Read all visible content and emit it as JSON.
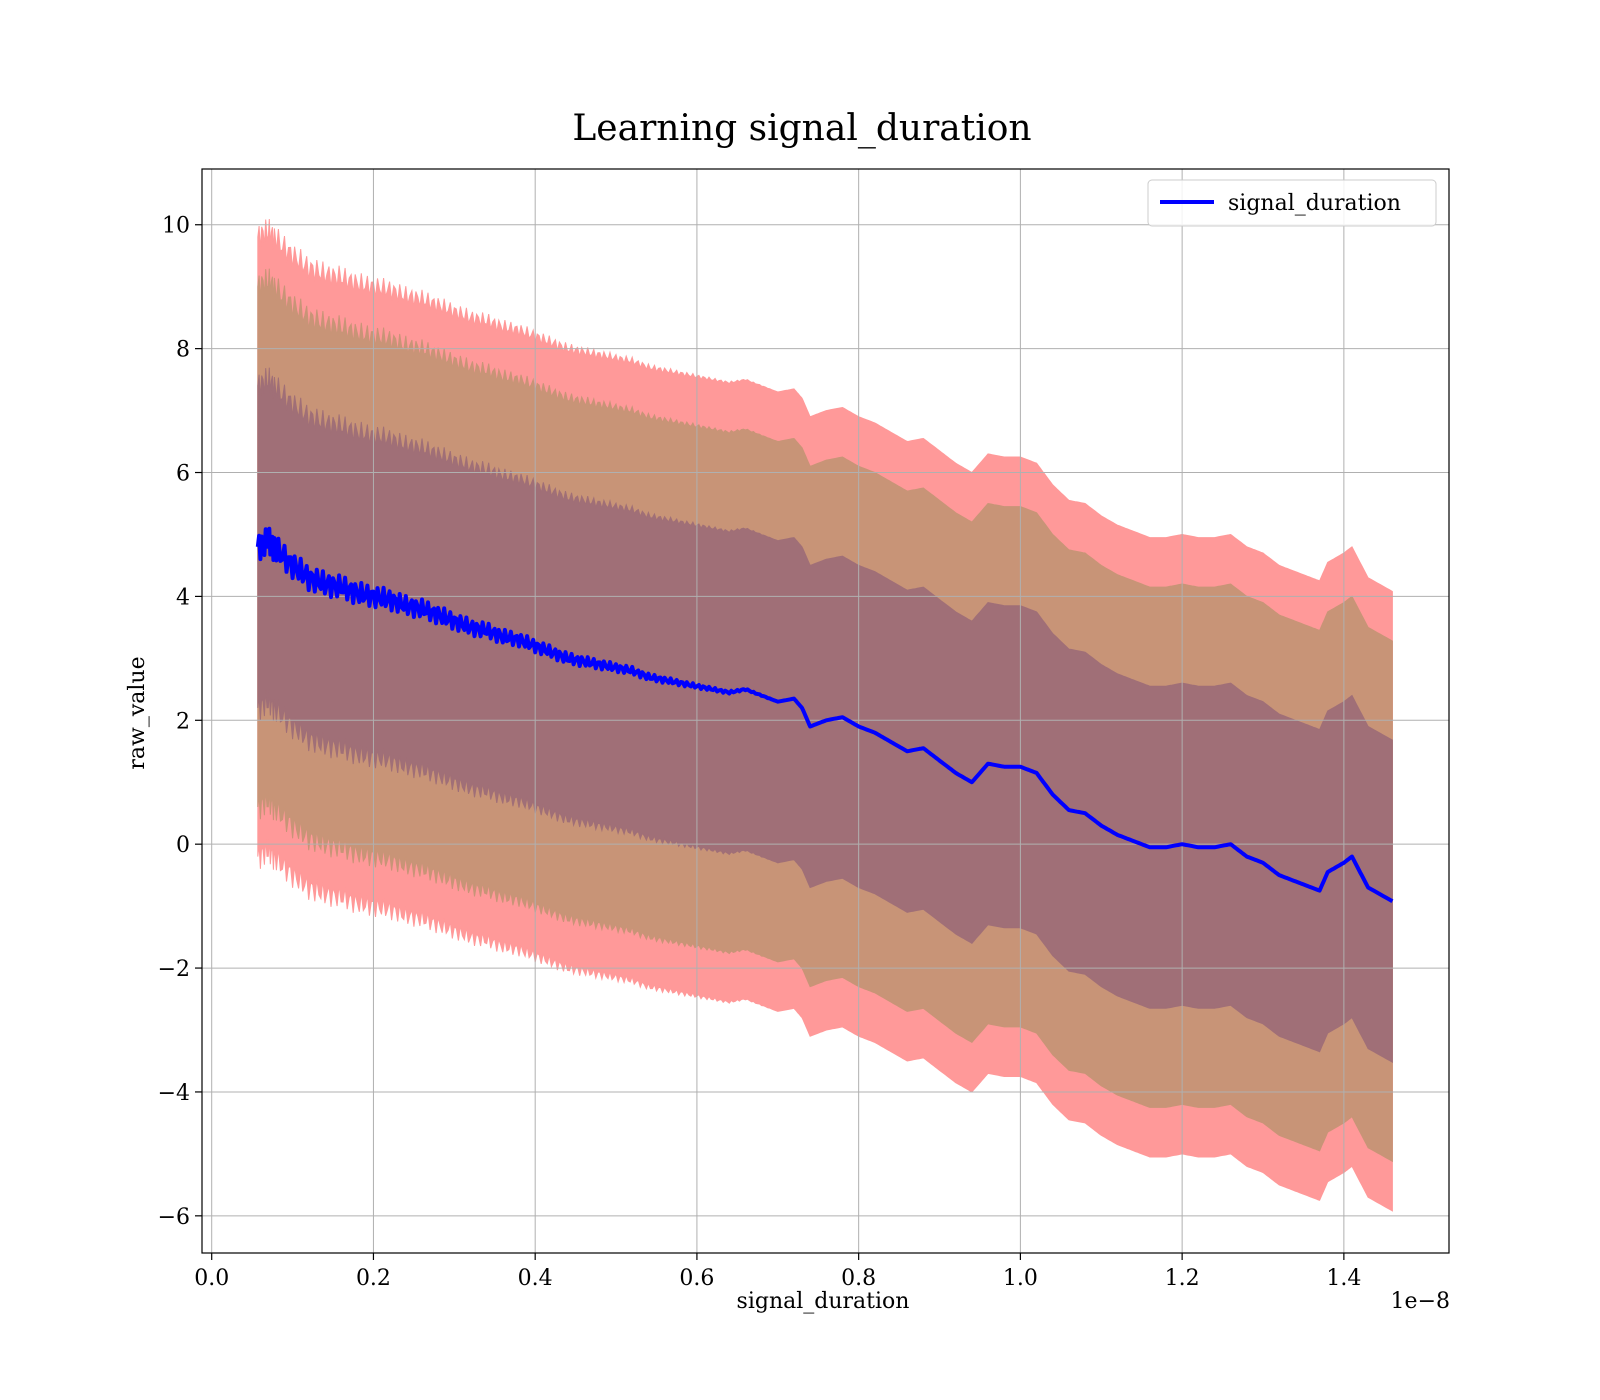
{
  "chart_data": {
    "type": "line",
    "title": "Learning signal_duration",
    "xlabel": "signal_duration",
    "ylabel": "raw_value",
    "x_offset_label": "1e−8",
    "xlim": [
      -0.012,
      1.53
    ],
    "ylim": [
      -6.6,
      10.9
    ],
    "x_ticks": [
      0.0,
      0.2,
      0.4,
      0.6,
      0.8,
      1.0,
      1.2,
      1.4
    ],
    "x_tick_labels": [
      "0.0",
      "0.2",
      "0.4",
      "0.6",
      "0.8",
      "1.0",
      "1.2",
      "1.4"
    ],
    "y_ticks": [
      -6,
      -4,
      -2,
      0,
      2,
      4,
      6,
      8,
      10
    ],
    "y_tick_labels": [
      "−6",
      "−4",
      "−2",
      "0",
      "2",
      "4",
      "6",
      "8",
      "10"
    ],
    "grid": true,
    "legend": {
      "placement": "top-right",
      "entries": [
        "signal_duration"
      ]
    },
    "colors": {
      "mean_line": "#0000ff",
      "band_outer": "#ff9999",
      "band_middle": "#c89477",
      "band_inner": "#a06f77",
      "grid": "#b0b0b0"
    },
    "band_half_widths": [
      2.6,
      4.2,
      5.0
    ],
    "series": [
      {
        "name": "signal_duration",
        "x": [
          0.057,
          0.07,
          0.08,
          0.1,
          0.12,
          0.14,
          0.16,
          0.18,
          0.2,
          0.22,
          0.24,
          0.26,
          0.28,
          0.3,
          0.32,
          0.34,
          0.36,
          0.38,
          0.4,
          0.42,
          0.44,
          0.46,
          0.48,
          0.5,
          0.52,
          0.54,
          0.56,
          0.58,
          0.6,
          0.62,
          0.64,
          0.66,
          0.68,
          0.7,
          0.72,
          0.73,
          0.74,
          0.76,
          0.78,
          0.8,
          0.82,
          0.84,
          0.86,
          0.88,
          0.9,
          0.92,
          0.94,
          0.96,
          0.98,
          1.0,
          1.02,
          1.04,
          1.06,
          1.08,
          1.1,
          1.12,
          1.14,
          1.16,
          1.18,
          1.2,
          1.22,
          1.24,
          1.26,
          1.28,
          1.3,
          1.32,
          1.34,
          1.36,
          1.37,
          1.38,
          1.4,
          1.41,
          1.43,
          1.46
        ],
        "y": [
          4.8,
          4.9,
          4.75,
          4.5,
          4.3,
          4.2,
          4.15,
          4.05,
          4.0,
          3.95,
          3.85,
          3.8,
          3.7,
          3.6,
          3.5,
          3.45,
          3.35,
          3.3,
          3.2,
          3.1,
          3.0,
          2.95,
          2.9,
          2.85,
          2.8,
          2.7,
          2.65,
          2.6,
          2.55,
          2.5,
          2.45,
          2.5,
          2.4,
          2.3,
          2.35,
          2.2,
          1.9,
          2.0,
          2.05,
          1.9,
          1.8,
          1.65,
          1.5,
          1.55,
          1.35,
          1.15,
          1.0,
          1.3,
          1.25,
          1.25,
          1.15,
          0.8,
          0.55,
          0.5,
          0.3,
          0.15,
          0.05,
          -0.05,
          -0.05,
          0.0,
          -0.05,
          -0.05,
          0.0,
          -0.2,
          -0.3,
          -0.5,
          -0.6,
          -0.7,
          -0.75,
          -0.45,
          -0.3,
          -0.2,
          -0.7,
          -0.92
        ]
      }
    ]
  }
}
